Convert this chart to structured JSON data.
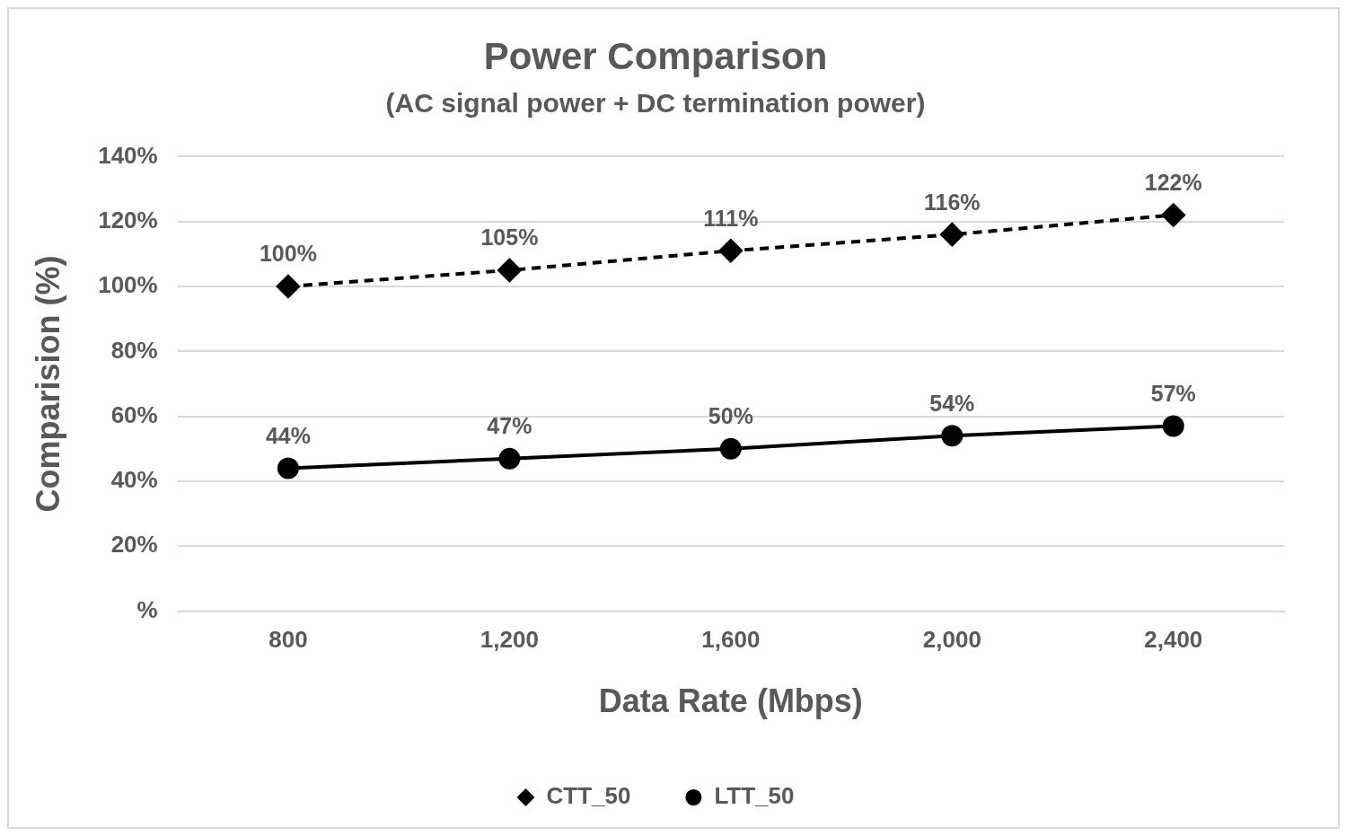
{
  "chart_data": {
    "type": "line",
    "title": "Power Comparison",
    "subtitle": "(AC signal power + DC termination power)",
    "xlabel": "Data Rate (Mbps)",
    "ylabel": "Comparision (%)",
    "categories": [
      "800",
      "1,200",
      "1,600",
      "2,000",
      "2,400"
    ],
    "series": [
      {
        "name": "CTT_50",
        "color": "#000000",
        "values": [
          100,
          105,
          111,
          116,
          122
        ],
        "value_labels": [
          "100%",
          "105%",
          "111%",
          "116%",
          "122%"
        ],
        "marker": "diamond",
        "line_style": "dashed"
      },
      {
        "name": "LTT_50",
        "color": "#000000",
        "values": [
          44,
          47,
          50,
          54,
          57
        ],
        "value_labels": [
          "44%",
          "47%",
          "50%",
          "54%",
          "57%"
        ],
        "marker": "circle",
        "line_style": "solid"
      }
    ],
    "ylim": [
      0,
      140
    ],
    "yticks": [
      {
        "value": 0,
        "label": "%"
      },
      {
        "value": 20,
        "label": "20%"
      },
      {
        "value": 40,
        "label": "40%"
      },
      {
        "value": 60,
        "label": "60%"
      },
      {
        "value": 80,
        "label": "80%"
      },
      {
        "value": 100,
        "label": "100%"
      },
      {
        "value": 120,
        "label": "120%"
      },
      {
        "value": 140,
        "label": "140%"
      }
    ],
    "grid": "y",
    "legend": "bottom"
  }
}
